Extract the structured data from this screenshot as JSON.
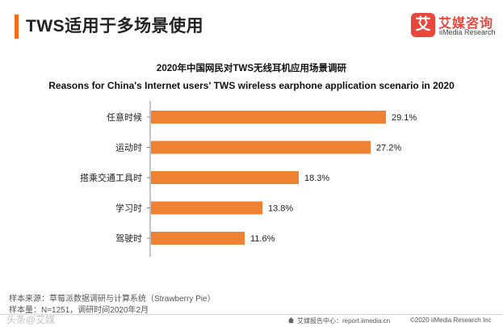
{
  "header": {
    "title": "TWS适用于多场景使用",
    "accent_color": "#ff6a1a"
  },
  "logo": {
    "mark": "艾",
    "name_cn": "艾媒咨询",
    "name_en": "iiMedia Research",
    "color": "#e8473d"
  },
  "chart_data": {
    "type": "bar",
    "orientation": "horizontal",
    "title_cn": "2020年中国网民对TWS无线耳机应用场景调研",
    "title_en": "Reasons for China's Internet users'  TWS wireless earphone application scenario in 2020",
    "categories": [
      "任意时候",
      "运动时",
      "搭乘交通工具时",
      "学习时",
      "驾驶时"
    ],
    "values": [
      29.1,
      27.2,
      18.3,
      13.8,
      11.6
    ],
    "value_labels": [
      "29.1%",
      "27.2%",
      "18.3%",
      "13.8%",
      "11.6%"
    ],
    "xlim": [
      0,
      35
    ],
    "unit": "%",
    "bar_color": "#ef8232",
    "grid": false
  },
  "footer": {
    "source": "样本来源：草莓派数据调研与计算系统（Strawberry Pie）",
    "sample": "样本量：N=1251，调研时间2020年2月",
    "watermark": "头条@艾媒",
    "center": "艾媒报告中心：report.iimedia.cn",
    "right": "©2020  iiMedia Research  Inc"
  }
}
